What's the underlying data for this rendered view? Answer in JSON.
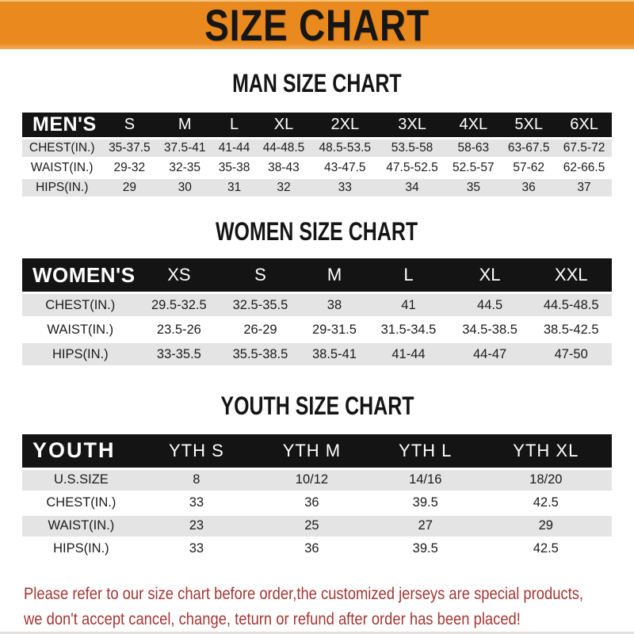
{
  "banner": {
    "title": "SIZE CHART"
  },
  "colors": {
    "banner_bg": "#EA8A1E",
    "header_bg": "#141414",
    "row_alt_bg": "#E4E4E4",
    "note_color": "#A23733"
  },
  "tables": [
    {
      "id": "men",
      "heading": "MAN SIZE CHART",
      "label": "MEN'S",
      "columns": [
        "S",
        "M",
        "L",
        "XL",
        "2XL",
        "3XL",
        "4XL",
        "5XL",
        "6XL"
      ],
      "rows": [
        {
          "label": "CHEST(IN.)",
          "values": [
            "35-37.5",
            "37.5-41",
            "41-44",
            "44-48.5",
            "48.5-53.5",
            "53.5-58",
            "58-63",
            "63-67.5",
            "67.5-72"
          ]
        },
        {
          "label": "WAIST(IN.)",
          "values": [
            "29-32",
            "32-35",
            "35-38",
            "38-43",
            "43-47.5",
            "47.5-52.5",
            "52.5-57",
            "57-62",
            "62-66.5"
          ]
        },
        {
          "label": "HIPS(IN.)",
          "values": [
            "29",
            "30",
            "31",
            "32",
            "33",
            "34",
            "35",
            "36",
            "37"
          ]
        }
      ]
    },
    {
      "id": "women",
      "heading": "WOMEN SIZE CHART",
      "label": "WOMEN'S",
      "columns": [
        "XS",
        "S",
        "M",
        "L",
        "XL",
        "XXL"
      ],
      "rows": [
        {
          "label": "CHEST(IN.)",
          "values": [
            "29.5-32.5",
            "32.5-35.5",
            "38",
            "41",
            "44.5",
            "44.5-48.5"
          ]
        },
        {
          "label": "WAIST(IN.)",
          "values": [
            "23.5-26",
            "26-29",
            "29-31.5",
            "31.5-34.5",
            "34.5-38.5",
            "38.5-42.5"
          ]
        },
        {
          "label": "HIPS(IN.)",
          "values": [
            "33-35.5",
            "35.5-38.5",
            "38.5-41",
            "41-44",
            "44-47",
            "47-50"
          ]
        }
      ]
    },
    {
      "id": "youth",
      "heading": "YOUTH SIZE CHART",
      "label": "YOUTH",
      "columns": [
        "YTH S",
        "YTH M",
        "YTH L",
        "YTH XL"
      ],
      "rows": [
        {
          "label": "U.S.SIZE",
          "values": [
            "8",
            "10/12",
            "14/16",
            "18/20"
          ]
        },
        {
          "label": "CHEST(IN.)",
          "values": [
            "33",
            "36",
            "39.5",
            "42.5"
          ]
        },
        {
          "label": "WAIST(IN.)",
          "values": [
            "23",
            "25",
            "27",
            "29"
          ]
        },
        {
          "label": "HIPS(IN.)",
          "values": [
            "33",
            "36",
            "39.5",
            "42.5"
          ]
        }
      ]
    }
  ],
  "note": {
    "line1": "Please refer to our size chart before order,the customized jerseys are special products,",
    "line2": "we don't accept cancel, change, teturn or refund after order has been placed!"
  }
}
